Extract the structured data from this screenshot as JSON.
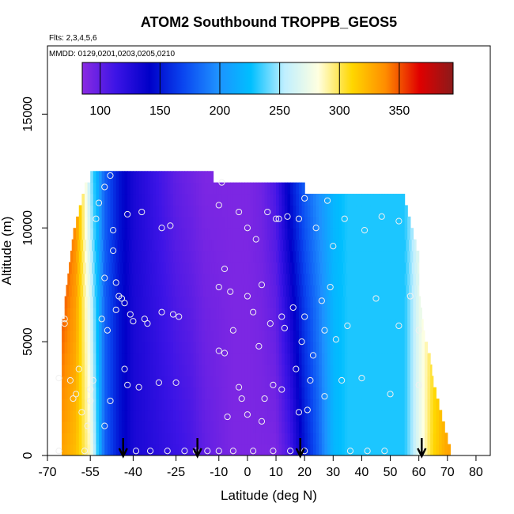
{
  "chart_data": {
    "type": "heatmap",
    "title": "ATOM2 Southbound TROPPB_GEOS5",
    "flights_note": "Flts: 2,3,4,5,6",
    "dates_note": "MMDD: 0129,0201,0203,0205,0210",
    "xlabel": "Latitude (deg N)",
    "ylabel": "Altitude (m)",
    "xlim": [
      -70,
      85
    ],
    "ylim": [
      0,
      18000
    ],
    "x_ticks": [
      -70,
      -55,
      -40,
      -25,
      -10,
      0,
      10,
      20,
      30,
      40,
      50,
      60,
      70,
      80
    ],
    "x_tick_labels": [
      "-70",
      "-55",
      "-40",
      "-25",
      "-10",
      "0",
      "10",
      "20",
      "30",
      "40",
      "50",
      "60",
      "70",
      "80"
    ],
    "y_ticks": [
      0,
      5000,
      10000,
      15000
    ],
    "y_tick_labels": [
      "0",
      "5000",
      "10000",
      "15000"
    ],
    "colorbar": {
      "min": 85,
      "max": 395,
      "ticks": [
        100,
        150,
        200,
        250,
        300,
        350
      ],
      "tick_labels": [
        "100",
        "150",
        "200",
        "250",
        "300",
        "350"
      ],
      "colors": [
        "#8a2be2",
        "#3c14e6",
        "#0000c8",
        "#0a46f0",
        "#1e90ff",
        "#00bfff",
        "#bfefff",
        "#ffffe0",
        "#ffd700",
        "#ff8c00",
        "#e00000",
        "#8b1a1a"
      ]
    },
    "altitude_bins": [
      0,
      500,
      1000,
      1500,
      2000,
      2500,
      3000,
      3500,
      4000,
      4500,
      5000,
      5500,
      6000,
      6500,
      7000,
      7500,
      8000,
      8500,
      9000,
      9500,
      10000,
      10500,
      11000,
      11500,
      12000,
      12500
    ],
    "valid_ranges": [
      [
        -65,
        71
      ],
      [
        -65,
        70
      ],
      [
        -65,
        69
      ],
      [
        -65,
        68
      ],
      [
        -65,
        67
      ],
      [
        -65,
        66
      ],
      [
        -65,
        65
      ],
      [
        -65,
        64.5
      ],
      [
        -65,
        64
      ],
      [
        -65,
        63
      ],
      [
        -65,
        62
      ],
      [
        -65,
        61.5
      ],
      [
        -64,
        61
      ],
      [
        -64,
        60.5
      ],
      [
        -63.5,
        60
      ],
      [
        -63,
        60
      ],
      [
        -62.5,
        60
      ],
      [
        -62,
        60
      ],
      [
        -61.5,
        59
      ],
      [
        -61,
        58
      ],
      [
        -60,
        57
      ],
      [
        -59,
        56
      ],
      [
        -58,
        55
      ],
      [
        -57,
        20
      ],
      [
        -55,
        -12
      ]
    ],
    "profile_latitudes": [
      -65,
      -60,
      -55,
      -50,
      -45,
      -40,
      -35,
      -30,
      -25,
      -20,
      -15,
      -10,
      -5,
      0,
      5,
      10,
      15,
      20,
      25,
      30,
      35,
      40,
      45,
      50,
      55,
      60,
      65,
      70
    ],
    "profile_low": [
      330,
      320,
      285,
      180,
      150,
      130,
      125,
      120,
      115,
      110,
      100,
      95,
      90,
      90,
      90,
      90,
      110,
      150,
      180,
      220,
      230,
      230,
      230,
      230,
      230,
      270,
      310,
      330
    ],
    "profile_high": [
      370,
      340,
      250,
      180,
      150,
      130,
      120,
      110,
      100,
      95,
      90,
      90,
      90,
      90,
      95,
      110,
      150,
      180,
      200,
      220,
      230,
      230,
      230,
      230,
      230,
      270,
      300,
      320
    ],
    "observation_points": [
      [
        -66,
        200
      ],
      [
        -66,
        3400
      ],
      [
        -64,
        5800
      ],
      [
        -64,
        6000
      ],
      [
        -62,
        3300
      ],
      [
        -61,
        2500
      ],
      [
        -60,
        2700
      ],
      [
        -59,
        3800
      ],
      [
        -58,
        1900
      ],
      [
        -57,
        200
      ],
      [
        -56,
        1300
      ],
      [
        -55,
        2400
      ],
      [
        -55,
        2900
      ],
      [
        -54,
        3300
      ],
      [
        -53,
        10400
      ],
      [
        -52,
        11100
      ],
      [
        -51,
        6000
      ],
      [
        -50,
        11800
      ],
      [
        -50,
        7800
      ],
      [
        -50,
        1300
      ],
      [
        -49,
        5500
      ],
      [
        -48,
        2400
      ],
      [
        -48,
        12300
      ],
      [
        -47,
        9000
      ],
      [
        -47,
        9900
      ],
      [
        -46,
        6400
      ],
      [
        -46,
        7600
      ],
      [
        -45,
        7000
      ],
      [
        -44,
        6900
      ],
      [
        -43,
        6700
      ],
      [
        -43,
        3800
      ],
      [
        -42,
        10600
      ],
      [
        -42,
        3100
      ],
      [
        -41,
        6200
      ],
      [
        -40,
        5900
      ],
      [
        -39,
        200
      ],
      [
        -38,
        3000
      ],
      [
        -37,
        10700
      ],
      [
        -36,
        6000
      ],
      [
        -35,
        5800
      ],
      [
        -34,
        200
      ],
      [
        -31,
        3200
      ],
      [
        -30,
        10000
      ],
      [
        -30,
        6300
      ],
      [
        -28,
        200
      ],
      [
        -27,
        10100
      ],
      [
        -26,
        6200
      ],
      [
        -25,
        3200
      ],
      [
        -24,
        6100
      ],
      [
        -22,
        200
      ],
      [
        -18,
        200
      ],
      [
        -14,
        200
      ],
      [
        -10,
        11000
      ],
      [
        -10,
        7400
      ],
      [
        -10,
        4600
      ],
      [
        -10,
        200
      ],
      [
        -9,
        12000
      ],
      [
        -8,
        8200
      ],
      [
        -8,
        4500
      ],
      [
        -7,
        1700
      ],
      [
        -6,
        7200
      ],
      [
        -5,
        5500
      ],
      [
        -5,
        200
      ],
      [
        -3,
        10700
      ],
      [
        -3,
        3000
      ],
      [
        -2,
        2500
      ],
      [
        0,
        10000
      ],
      [
        0,
        7000
      ],
      [
        0,
        1800
      ],
      [
        2,
        6300
      ],
      [
        2,
        200
      ],
      [
        3,
        9500
      ],
      [
        4,
        4800
      ],
      [
        5,
        7500
      ],
      [
        5,
        1500
      ],
      [
        6,
        2500
      ],
      [
        7,
        10700
      ],
      [
        8,
        5800
      ],
      [
        9,
        3100
      ],
      [
        9,
        200
      ],
      [
        10,
        10400
      ],
      [
        11,
        10400
      ],
      [
        12,
        6100
      ],
      [
        12,
        2900
      ],
      [
        13,
        5600
      ],
      [
        14,
        10500
      ],
      [
        15,
        200
      ],
      [
        16,
        6500
      ],
      [
        17,
        3800
      ],
      [
        18,
        10400
      ],
      [
        18,
        1900
      ],
      [
        19,
        5000
      ],
      [
        20,
        11300
      ],
      [
        20,
        6100
      ],
      [
        20,
        200
      ],
      [
        21,
        2000
      ],
      [
        22,
        3300
      ],
      [
        23,
        4400
      ],
      [
        24,
        10000
      ],
      [
        26,
        6800
      ],
      [
        27,
        2600
      ],
      [
        27,
        5500
      ],
      [
        28,
        11200
      ],
      [
        29,
        7400
      ],
      [
        30,
        9200
      ],
      [
        31,
        5100
      ],
      [
        33,
        3300
      ],
      [
        34,
        10400
      ],
      [
        35,
        5700
      ],
      [
        36,
        200
      ],
      [
        40,
        3400
      ],
      [
        41,
        9900
      ],
      [
        42,
        200
      ],
      [
        45,
        6900
      ],
      [
        47,
        10500
      ],
      [
        48,
        200
      ],
      [
        50,
        2700
      ],
      [
        53,
        10300
      ],
      [
        53,
        5700
      ],
      [
        57,
        7000
      ],
      [
        60,
        3100
      ],
      [
        60,
        5500
      ],
      [
        61,
        200
      ]
    ],
    "arrow_latitudes": [
      -43.5,
      -17.5,
      18.5,
      61
    ]
  }
}
